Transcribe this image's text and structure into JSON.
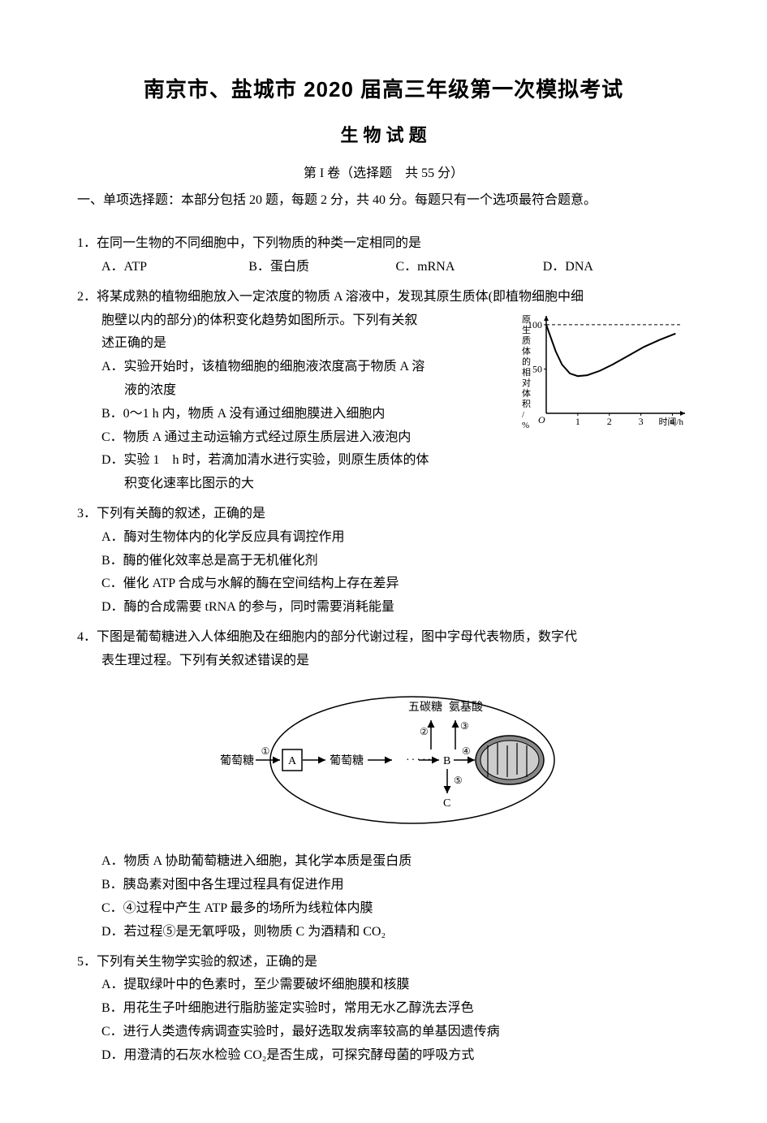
{
  "title": "南京市、盐城市 2020 届高三年级第一次模拟考试",
  "subtitle": "生 物 试 题",
  "section_header": "第 I 卷（选择题　共 55 分）",
  "instructions": "一、单项选择题：本部分包括 20 题，每题 2 分，共 40 分。每题只有一个选项最符合题意。",
  "q1": {
    "stem": "1．在同一生物的不同细胞中，下列物质的种类一定相同的是",
    "a": "A．ATP",
    "b": "B．蛋白质",
    "c": "C．mRNA",
    "d": "D．DNA"
  },
  "q2": {
    "stem_line1": "2．将某成熟的植物细胞放入一定浓度的物质 A 溶液中，发现其原生质体(即植物细胞中细",
    "stem_line2": "胞壁以内的部分)的体积变化趋势如图所示。下列有关叙",
    "stem_line3": "述正确的是",
    "a_line1": "A．实验开始时，该植物细胞的细胞液浓度高于物质 A 溶",
    "a_line2": "液的浓度",
    "b": "B．0～1 h 内，物质 A 没有通过细胞膜进入细胞内",
    "c": "C．物质 A 通过主动运输方式经过原生质层进入液泡内",
    "d_line1": "D．实验 1　h 时，若滴加清水进行实验，则原生质体的体",
    "d_line2": "积变化速率比图示的大"
  },
  "q3": {
    "stem": "3．下列有关酶的叙述，正确的是",
    "a": "A．酶对生物体内的化学反应具有调控作用",
    "b": "B．酶的催化效率总是高于无机催化剂",
    "c": "C．催化 ATP 合成与水解的酶在空间结构上存在差异",
    "d": "D．酶的合成需要 tRNA 的参与，同时需要消耗能量"
  },
  "q4": {
    "stem_line1": "4．下图是葡萄糖进入人体细胞及在细胞内的部分代谢过程，图中字母代表物质，数字代",
    "stem_line2": "表生理过程。下列有关叙述错误的是",
    "a": "A．物质 A 协助葡萄糖进入细胞，其化学本质是蛋白质",
    "b": "B．胰岛素对图中各生理过程具有促进作用",
    "c": "C．④过程中产生 ATP 最多的场所为线粒体内膜",
    "d": "D．若过程⑤是无氧呼吸，则物质 C 为酒精和 CO₂"
  },
  "q5": {
    "stem": "5．下列有关生物学实验的叙述，正确的是",
    "a": "A．提取绿叶中的色素时，至少需要破坏细胞膜和核膜",
    "b": "B．用花生子叶细胞进行脂肪鉴定实验时，常用无水乙醇洗去浮色",
    "c": "C．进行人类遗传病调查实验时，最好选取发病率较高的单基因遗传病",
    "d": "D．用澄清的石灰水检验 CO₂是否生成，可探究酵母菌的呼吸方式"
  },
  "chart": {
    "y_axis_label": "原生质体的相对体积/%",
    "x_axis_label": "时间/h",
    "ylim": [
      0,
      110
    ],
    "xlim": [
      0,
      4.4
    ],
    "ytick_positions": [
      50,
      100
    ],
    "ytick_labels": [
      "50",
      "100"
    ],
    "xtick_positions": [
      1,
      2,
      3,
      4
    ],
    "xtick_labels": [
      "1",
      "2",
      "3",
      "4"
    ],
    "dashed_level": 100,
    "curve_points": [
      [
        0.0,
        100
      ],
      [
        0.15,
        85
      ],
      [
        0.3,
        70
      ],
      [
        0.5,
        55
      ],
      [
        0.75,
        45
      ],
      [
        1.0,
        42
      ],
      [
        1.3,
        43
      ],
      [
        1.7,
        48
      ],
      [
        2.1,
        55
      ],
      [
        2.6,
        65
      ],
      [
        3.1,
        75
      ],
      [
        3.6,
        83
      ],
      [
        4.1,
        90
      ]
    ],
    "origin_label": "O",
    "axis_color": "#000000",
    "curve_color": "#000000",
    "curve_width": 2,
    "dashed_color": "#000000",
    "background_color": "#ffffff",
    "label_fontsize": 12
  },
  "diagram": {
    "labels": {
      "glucose_out": "葡萄糖",
      "circ1": "①",
      "A": "A",
      "glucose_in": "葡萄糖",
      "B": "B",
      "C": "C",
      "circ2": "②",
      "circ3": "③",
      "circ4": "④",
      "circ5": "⑤",
      "pentose": "五碳糖",
      "amino": "氨基酸"
    },
    "stroke_color": "#000000",
    "fill_membrane": "#ffffff",
    "mito_fill": "#888888",
    "mito_inner": "#cccccc",
    "line_width": 1.5,
    "label_fontsize": 14
  }
}
